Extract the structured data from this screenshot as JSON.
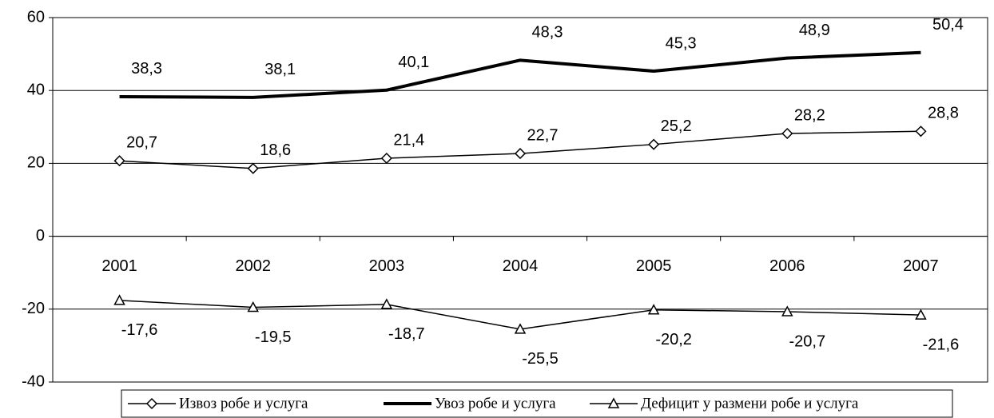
{
  "chart_data": {
    "type": "line",
    "categories": [
      "2001",
      "2002",
      "2003",
      "2004",
      "2005",
      "2006",
      "2007"
    ],
    "series": [
      {
        "name": "Извоз робе и услуга",
        "color": "#000000",
        "marker": "diamond",
        "line_width": 1.5,
        "values": [
          20.7,
          18.6,
          21.4,
          22.7,
          25.2,
          28.2,
          28.8
        ],
        "value_labels": [
          "20,7",
          "18,6",
          "21,4",
          "22,7",
          "25,2",
          "28,2",
          "28,8"
        ]
      },
      {
        "name": "Увоз робе и услуга",
        "color": "#000000",
        "marker": "none",
        "line_width": 4,
        "values": [
          38.3,
          38.1,
          40.1,
          48.3,
          45.3,
          48.9,
          50.4
        ],
        "value_labels": [
          "38,3",
          "38,1",
          "40,1",
          "48,3",
          "45,3",
          "48,9",
          "50,4"
        ]
      },
      {
        "name": "Дефицит у размени робе и услуга",
        "color": "#000000",
        "marker": "triangle",
        "line_width": 1.5,
        "values": [
          -17.6,
          -19.5,
          -18.7,
          -25.5,
          -20.2,
          -20.7,
          -21.6
        ],
        "value_labels": [
          "-17,6",
          "-19,5",
          "-18,7",
          "-25,5",
          "-20,2",
          "-20,7",
          "-21,6"
        ]
      }
    ],
    "ylim": [
      -40,
      60
    ],
    "yticks": [
      -40,
      -20,
      0,
      20,
      40,
      60
    ],
    "grid": true,
    "legend": "bottom"
  }
}
